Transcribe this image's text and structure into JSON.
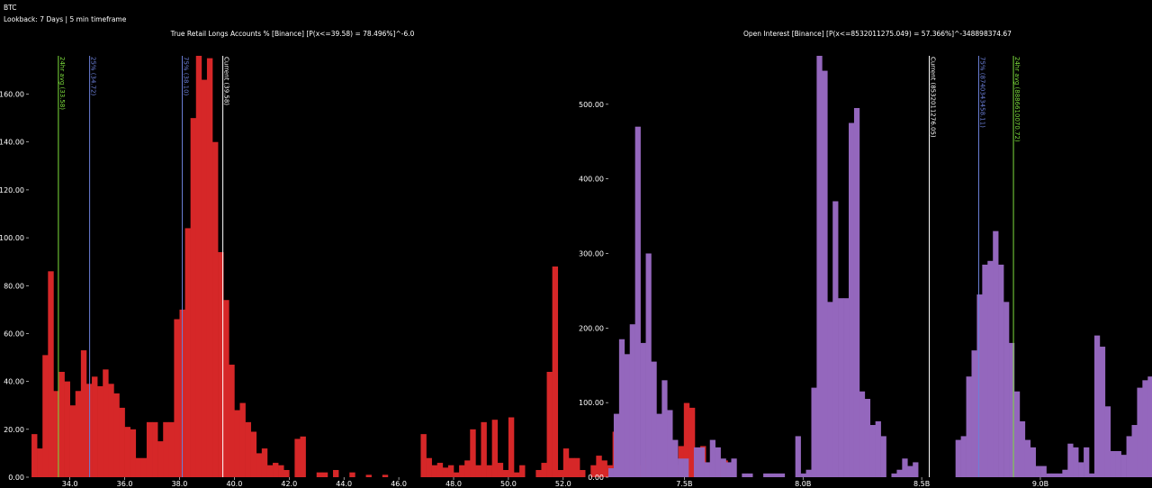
{
  "header": {
    "symbol": "BTC",
    "lookback": "Lookback: 7 Days | 5 min timeframe"
  },
  "colors": {
    "background": "#000000",
    "left_bars": "#d62728",
    "right_bars": "#9467bd",
    "marker_green": "#7cdc3c",
    "marker_blue": "#6b7fd8",
    "marker_white": "#ffffff"
  },
  "chart_data": [
    {
      "type": "bar",
      "title": "True Retail Longs Accounts % [Binance] [P(x<=39.58) = 78.496%]^-6.0",
      "xlabel": "",
      "ylabel": "",
      "xlim": [
        32.5,
        52.4
      ],
      "ylim": [
        0,
        176
      ],
      "x_ticks": [
        34.0,
        36.0,
        38.0,
        40.0,
        42.0,
        44.0,
        46.0,
        48.0,
        50.0,
        52.0
      ],
      "x_tick_labels": [
        "34.0",
        "36.0",
        "38.0",
        "40.0",
        "42.0",
        "44.0",
        "46.0",
        "48.0",
        "50.0",
        "52.0"
      ],
      "y_ticks": [
        0,
        20,
        40,
        60,
        80,
        100,
        120,
        140,
        160
      ],
      "y_tick_labels": [
        "0.00",
        "20.00",
        "40.00",
        "60.00",
        "80.00",
        "100.00",
        "120.00",
        "140.00",
        "160.00"
      ],
      "bin_start": 32.6,
      "bin_width": 0.2,
      "values": [
        18,
        12,
        51,
        86,
        36,
        44,
        40,
        30,
        36,
        53,
        39,
        42,
        38,
        45,
        39,
        35,
        29,
        21,
        20,
        8,
        8,
        23,
        23,
        15,
        23,
        23,
        66,
        70,
        104,
        150,
        176,
        166,
        175,
        140,
        94,
        74,
        47,
        28,
        31,
        23,
        19,
        10,
        12,
        5,
        6,
        5,
        3,
        0,
        16,
        17,
        0,
        0,
        2,
        2,
        0,
        3,
        0,
        0,
        2,
        0,
        0,
        1,
        0,
        0,
        1,
        0,
        0,
        0,
        0,
        0,
        0,
        18,
        8,
        5,
        6,
        4,
        5,
        2,
        5,
        7,
        20,
        5,
        23,
        5,
        24,
        6,
        3,
        25,
        2,
        5,
        0,
        0,
        3,
        6,
        44,
        88,
        3,
        12,
        8,
        8,
        3,
        0,
        5,
        9,
        7,
        5,
        19,
        5,
        5,
        5,
        7,
        5,
        8,
        3,
        0,
        10,
        6,
        5,
        13,
        31,
        29,
        3,
        13,
        4,
        2,
        7,
        7,
        0
      ],
      "markers": [
        {
          "label": "24hr avg (33.58)",
          "x": 33.58,
          "color": "#7cdc3c"
        },
        {
          "label": "25% (34.72)",
          "x": 34.72,
          "color": "#6b7fd8"
        },
        {
          "label": "75% (38.10)",
          "x": 38.1,
          "color": "#6b7fd8"
        },
        {
          "label": "Current (39.58)",
          "x": 39.58,
          "color": "#ffffff"
        }
      ]
    },
    {
      "type": "bar",
      "title": "Open Interest [Binance] [P(x<=8532011275.049) = 57.366%]^-348898374.67",
      "xlabel": "",
      "ylabel": "",
      "xlim": [
        7.18,
        9.44
      ],
      "ylim": [
        0,
        565
      ],
      "x_ticks": [
        7.5,
        8.0,
        8.5,
        9.0
      ],
      "x_tick_labels": [
        "7.5B",
        "8.0B",
        "8.5B",
        "9.0B"
      ],
      "y_ticks": [
        0,
        100,
        200,
        300,
        400,
        500
      ],
      "y_tick_labels": [
        "0.00",
        "100.00",
        "200.00",
        "300.00",
        "400.00",
        "500.00"
      ],
      "bin_start": 7.18,
      "bin_width": 0.0225,
      "values": [
        12,
        85,
        185,
        165,
        205,
        470,
        180,
        300,
        155,
        85,
        130,
        90,
        50,
        25,
        25,
        0,
        40,
        40,
        20,
        50,
        40,
        25,
        20,
        25,
        0,
        5,
        5,
        0,
        0,
        5,
        5,
        5,
        5,
        0,
        0,
        55,
        5,
        10,
        120,
        565,
        545,
        235,
        370,
        240,
        240,
        475,
        495,
        115,
        105,
        70,
        75,
        55,
        0,
        5,
        10,
        25,
        15,
        20,
        0,
        0,
        0,
        0,
        0,
        0,
        0,
        50,
        55,
        135,
        170,
        245,
        285,
        290,
        330,
        285,
        235,
        180,
        115,
        75,
        50,
        40,
        15,
        15,
        5,
        5,
        5,
        10,
        45,
        40,
        20,
        40,
        5,
        190,
        175,
        95,
        35,
        35,
        30,
        55,
        70,
        120,
        130,
        135,
        155,
        170,
        185,
        200,
        305,
        320,
        210,
        40,
        5,
        0
      ],
      "markers": [
        {
          "label": "Current (8532011276.05)",
          "x": 8.532,
          "color": "#ffffff"
        },
        {
          "label": "75% (8740343458.11)",
          "x": 8.7403,
          "color": "#6b7fd8"
        },
        {
          "label": "24hr avg (8886610070.72)",
          "x": 8.8866,
          "color": "#7cdc3c"
        }
      ]
    }
  ]
}
